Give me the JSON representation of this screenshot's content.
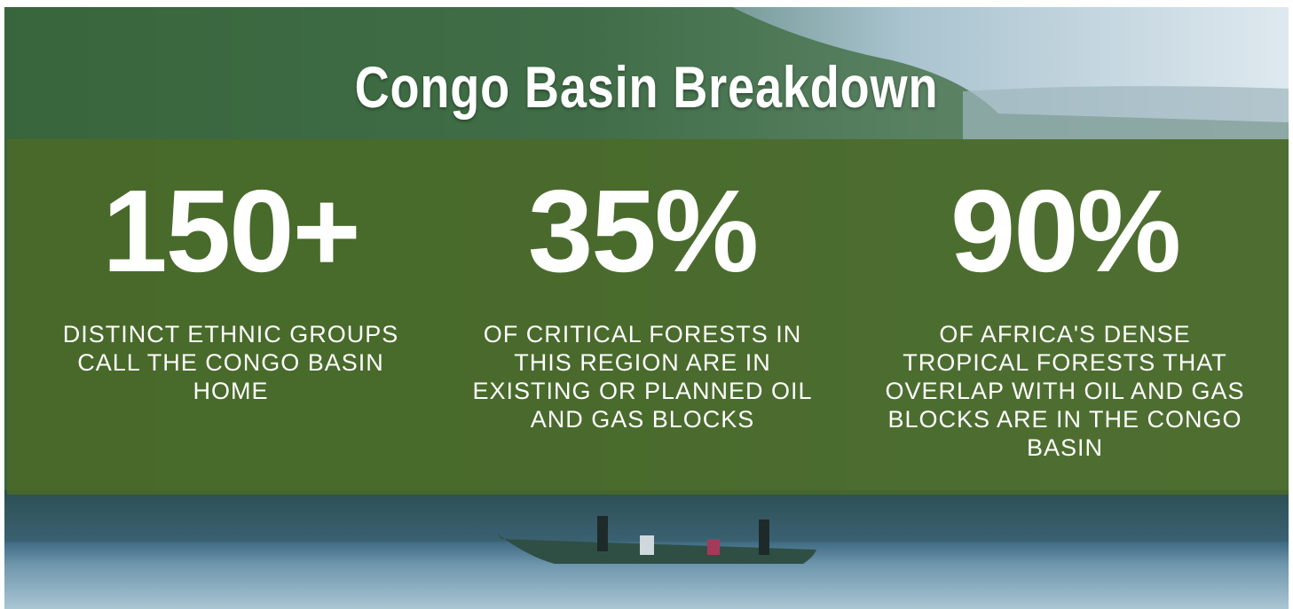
{
  "header": {
    "title": "Congo Basin Breakdown"
  },
  "stats": [
    {
      "value": "150+",
      "description": "DISTINCT ETHNIC GROUPS CALL THE CONGO BASIN HOME"
    },
    {
      "value": "35%",
      "description": "OF CRITICAL FORESTS IN THIS REGION ARE IN EXISTING OR PLANNED OIL AND GAS BLOCKS"
    },
    {
      "value": "90%",
      "description": "OF AFRICA'S DENSE TROPICAL FORESTS THAT OVERLAP WITH OIL AND GAS BLOCKS ARE IN THE CONGO BASIN"
    }
  ]
}
